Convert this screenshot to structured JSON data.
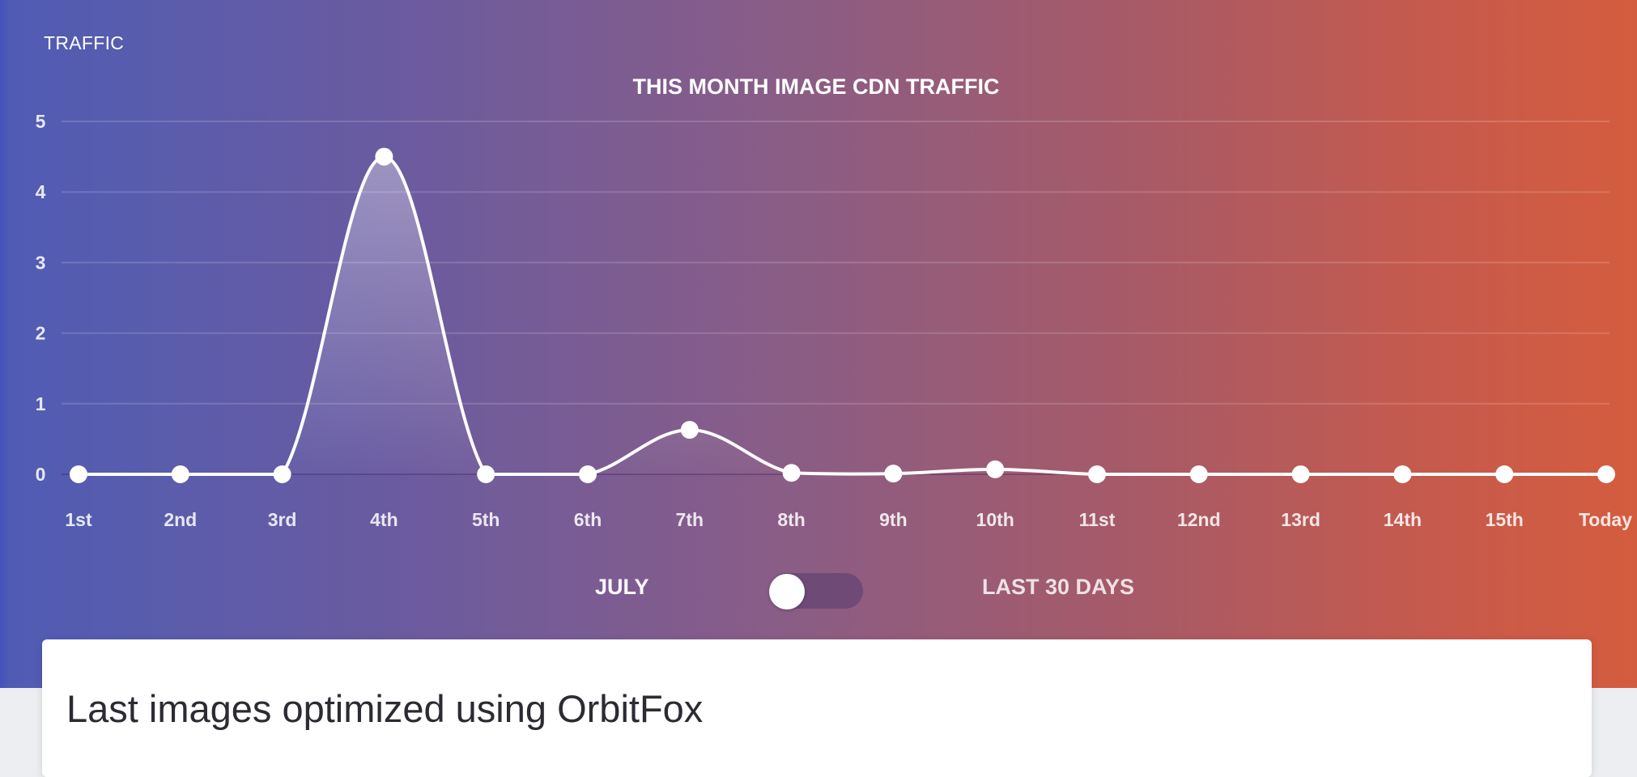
{
  "section_label": "TRAFFIC",
  "chart_data": {
    "type": "line",
    "title": "THIS MONTH IMAGE CDN TRAFFIC",
    "categories": [
      "1st",
      "2nd",
      "3rd",
      "4th",
      "5th",
      "6th",
      "7th",
      "8th",
      "9th",
      "10th",
      "11st",
      "12nd",
      "13rd",
      "14th",
      "15th",
      "Today"
    ],
    "values": [
      0,
      0,
      0,
      4.5,
      0,
      0,
      0.63,
      0.02,
      0.01,
      0.07,
      0,
      0,
      0,
      0,
      0,
      0
    ],
    "y_ticks": [
      0,
      1,
      2,
      3,
      4,
      5
    ],
    "ylim": [
      0,
      5
    ],
    "xlabel": "",
    "ylabel": "",
    "grid": true,
    "fill_under_curve": true
  },
  "toggle": {
    "left_label": "JULY",
    "right_label": "LAST 30 DAYS",
    "state": "left"
  },
  "card": {
    "title": "Last images optimized using OrbitFox"
  },
  "colors": {
    "gradient_start": "#4f5cb4",
    "gradient_end": "#d45c3e",
    "line": "#ffffff",
    "card_bg": "#ffffff",
    "page_bg": "#eceef1"
  }
}
